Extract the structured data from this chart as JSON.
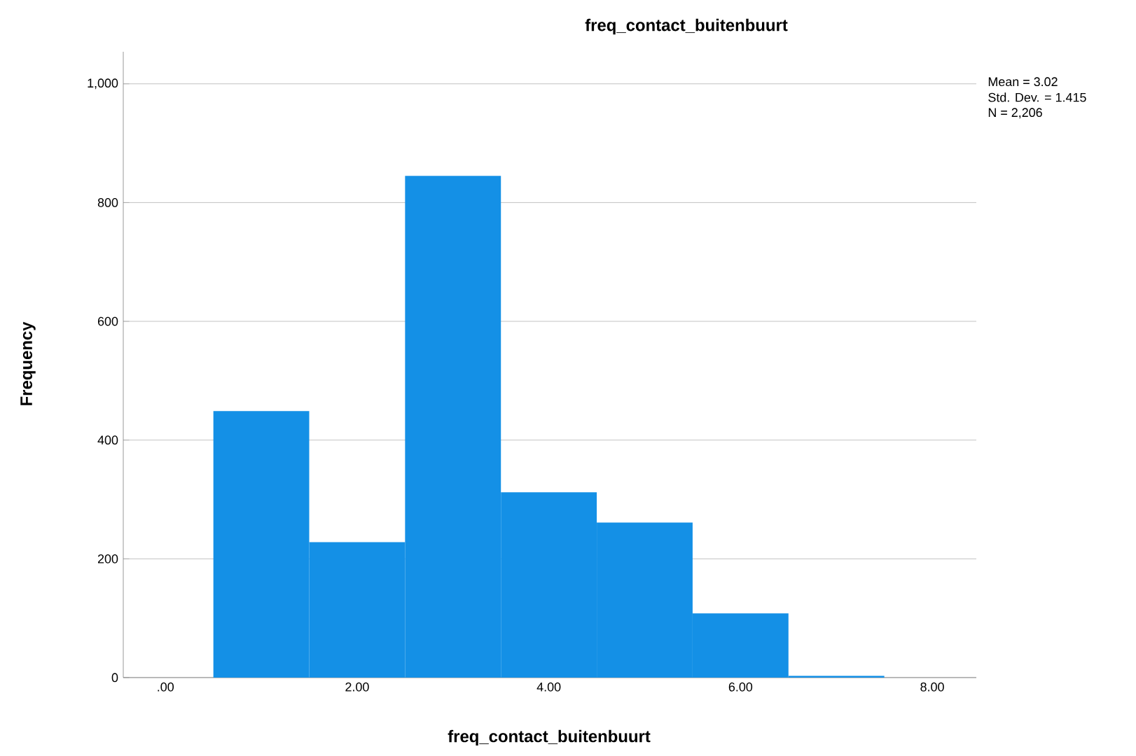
{
  "chart_data": {
    "type": "histogram",
    "title": "freq_contact_buitenbuurt",
    "xlabel": "freq_contact_buitenbuurt",
    "ylabel": "Frequency",
    "bins": [
      0.5,
      1.5,
      2.5,
      3.5,
      4.5,
      5.5,
      6.5,
      7.5
    ],
    "values": [
      449,
      228,
      845,
      312,
      261,
      108,
      3
    ],
    "color": "#1490e6",
    "xlim": [
      -0.44,
      8.46
    ],
    "xticks": [
      {
        "value": 0,
        "label": ".00"
      },
      {
        "value": 2,
        "label": "2.00"
      },
      {
        "value": 4,
        "label": "4.00"
      },
      {
        "value": 6,
        "label": "6.00"
      },
      {
        "value": 8,
        "label": "8.00"
      }
    ],
    "ylim": [
      0,
      1054
    ],
    "yticks": [
      0,
      200,
      400,
      600,
      800,
      {
        "value": 1000,
        "label": "1,000"
      }
    ],
    "grid": "y",
    "annotations": [
      "Mean = 3.02",
      "Std. Dev. = 1.415",
      "N = 2,206"
    ]
  }
}
